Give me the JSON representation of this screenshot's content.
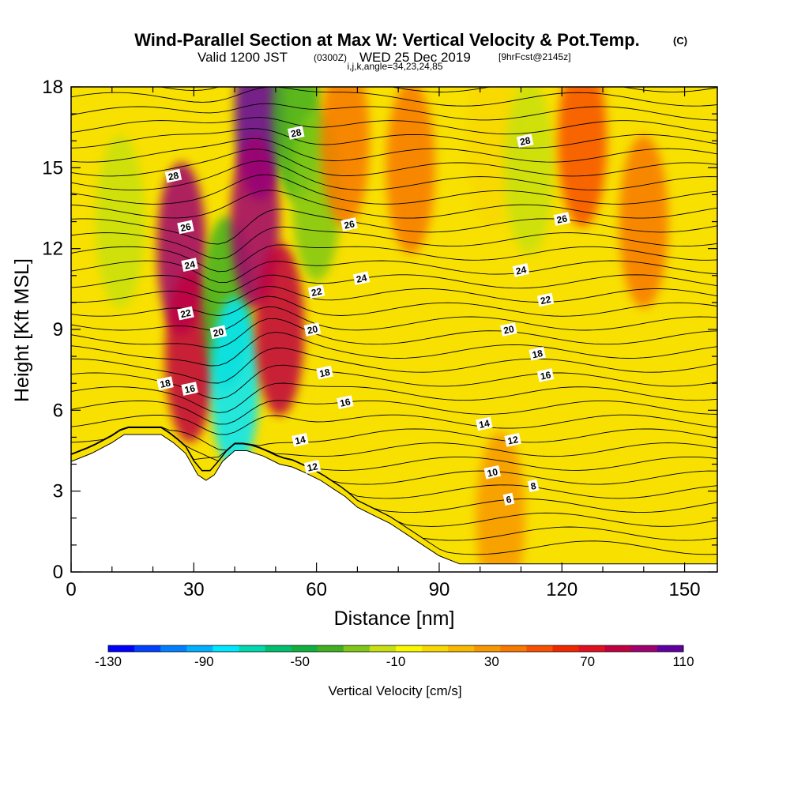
{
  "header": {
    "title": "Wind-Parallel Section at Max W: Vertical Velocity & Pot.Temp.",
    "title_mark": "(C)",
    "valid_prefix": "Valid 1200 JST",
    "valid_utc": "(0300Z)",
    "valid_date": "WED 25 Dec 2019",
    "fcst": "[9hrFcst@2145z]",
    "indices": "i,j,k,angle=34,23,24,85"
  },
  "chart_data": {
    "type": "heatmap",
    "xlabel": "Distance [nm]",
    "ylabel": "Height [Kft MSL]",
    "xlim": [
      0,
      158
    ],
    "ylim": [
      0,
      18
    ],
    "x_ticks": [
      0,
      30,
      60,
      90,
      120,
      150
    ],
    "y_ticks": [
      0,
      3,
      6,
      9,
      12,
      15,
      18
    ],
    "colorbar": {
      "label": "Vertical Velocity [cm/s]",
      "range": [
        -130,
        110
      ],
      "step": 10,
      "tick_values": [
        -130,
        -90,
        -50,
        -10,
        30,
        70,
        110
      ],
      "tick_labels": [
        "-130",
        "-90",
        "-50",
        "-10",
        "30",
        "70",
        "110"
      ],
      "colors": [
        "#0000ff",
        "#0040ff",
        "#0080ff",
        "#00b0ff",
        "#00e8ff",
        "#00d8b0",
        "#00c070",
        "#10b040",
        "#40b020",
        "#80c818",
        "#c8e010",
        "#f8f800",
        "#f8d800",
        "#f8b800",
        "#f89800",
        "#f87800",
        "#f85000",
        "#f02800",
        "#e01020",
        "#c00040",
        "#a00070",
        "#6000a0"
      ]
    },
    "terrain_kft": [
      [
        0,
        4.1
      ],
      [
        5,
        4.4
      ],
      [
        10,
        4.8
      ],
      [
        13,
        5.1
      ],
      [
        22,
        5.1
      ],
      [
        25,
        4.8
      ],
      [
        28,
        4.4
      ],
      [
        31,
        3.6
      ],
      [
        33,
        3.4
      ],
      [
        35,
        3.6
      ],
      [
        37,
        4.1
      ],
      [
        40,
        4.5
      ],
      [
        43,
        4.5
      ],
      [
        47,
        4.3
      ],
      [
        51,
        4.0
      ],
      [
        54,
        3.9
      ],
      [
        57,
        3.7
      ],
      [
        61,
        3.4
      ],
      [
        64,
        3.1
      ],
      [
        67,
        2.8
      ],
      [
        70,
        2.4
      ],
      [
        74,
        2.1
      ],
      [
        78,
        1.8
      ],
      [
        82,
        1.4
      ],
      [
        86,
        1.0
      ],
      [
        90,
        0.6
      ],
      [
        95,
        0.3
      ],
      [
        158,
        0.3
      ]
    ],
    "theta_contours_C": [
      6,
      8,
      10,
      12,
      14,
      16,
      18,
      20,
      22,
      24,
      26,
      28
    ],
    "contour_labels": [
      {
        "text": "6",
        "x": 107,
        "y": 2.7
      },
      {
        "text": "8",
        "x": 113,
        "y": 3.2
      },
      {
        "text": "10",
        "x": 103,
        "y": 3.7
      },
      {
        "text": "12",
        "x": 59,
        "y": 3.9
      },
      {
        "text": "12",
        "x": 108,
        "y": 4.9
      },
      {
        "text": "14",
        "x": 56,
        "y": 4.9
      },
      {
        "text": "14",
        "x": 101,
        "y": 5.5
      },
      {
        "text": "16",
        "x": 29,
        "y": 6.8
      },
      {
        "text": "16",
        "x": 67,
        "y": 6.3
      },
      {
        "text": "16",
        "x": 116,
        "y": 7.3
      },
      {
        "text": "18",
        "x": 23,
        "y": 7.0
      },
      {
        "text": "18",
        "x": 62,
        "y": 7.4
      },
      {
        "text": "18",
        "x": 114,
        "y": 8.1
      },
      {
        "text": "20",
        "x": 36,
        "y": 8.9
      },
      {
        "text": "20",
        "x": 59,
        "y": 9.0
      },
      {
        "text": "20",
        "x": 107,
        "y": 9.0
      },
      {
        "text": "22",
        "x": 28,
        "y": 9.6
      },
      {
        "text": "22",
        "x": 60,
        "y": 10.4
      },
      {
        "text": "22",
        "x": 116,
        "y": 10.1
      },
      {
        "text": "24",
        "x": 29,
        "y": 11.4
      },
      {
        "text": "24",
        "x": 71,
        "y": 10.9
      },
      {
        "text": "24",
        "x": 110,
        "y": 11.2
      },
      {
        "text": "26",
        "x": 28,
        "y": 12.8
      },
      {
        "text": "26",
        "x": 68,
        "y": 12.9
      },
      {
        "text": "26",
        "x": 120,
        "y": 13.1
      },
      {
        "text": "28",
        "x": 25,
        "y": 14.7
      },
      {
        "text": "28",
        "x": 55,
        "y": 16.3
      },
      {
        "text": "28",
        "x": 111,
        "y": 16.0
      }
    ],
    "w_features_cm_s": [
      {
        "x": 12,
        "y": 13,
        "w": -30
      },
      {
        "x": 27,
        "y": 12,
        "w": 70
      },
      {
        "x": 29,
        "y": 8,
        "w": 60
      },
      {
        "x": 38,
        "y": 10,
        "w": -50
      },
      {
        "x": 40,
        "y": 7,
        "w": -90
      },
      {
        "x": 46,
        "y": 17,
        "w": 110
      },
      {
        "x": 45,
        "y": 13,
        "w": 75
      },
      {
        "x": 51,
        "y": 9,
        "w": 65
      },
      {
        "x": 55,
        "y": 17,
        "w": -45
      },
      {
        "x": 60,
        "y": 14,
        "w": -40
      },
      {
        "x": 67,
        "y": 16,
        "w": 20
      },
      {
        "x": 83,
        "y": 15,
        "w": 25
      },
      {
        "x": 103,
        "y": 16,
        "w": -10
      },
      {
        "x": 112,
        "y": 15,
        "w": -30
      },
      {
        "x": 125,
        "y": 16,
        "w": 30
      },
      {
        "x": 140,
        "y": 13,
        "w": 20
      },
      {
        "x": 105,
        "y": 2,
        "w": 10
      }
    ]
  }
}
